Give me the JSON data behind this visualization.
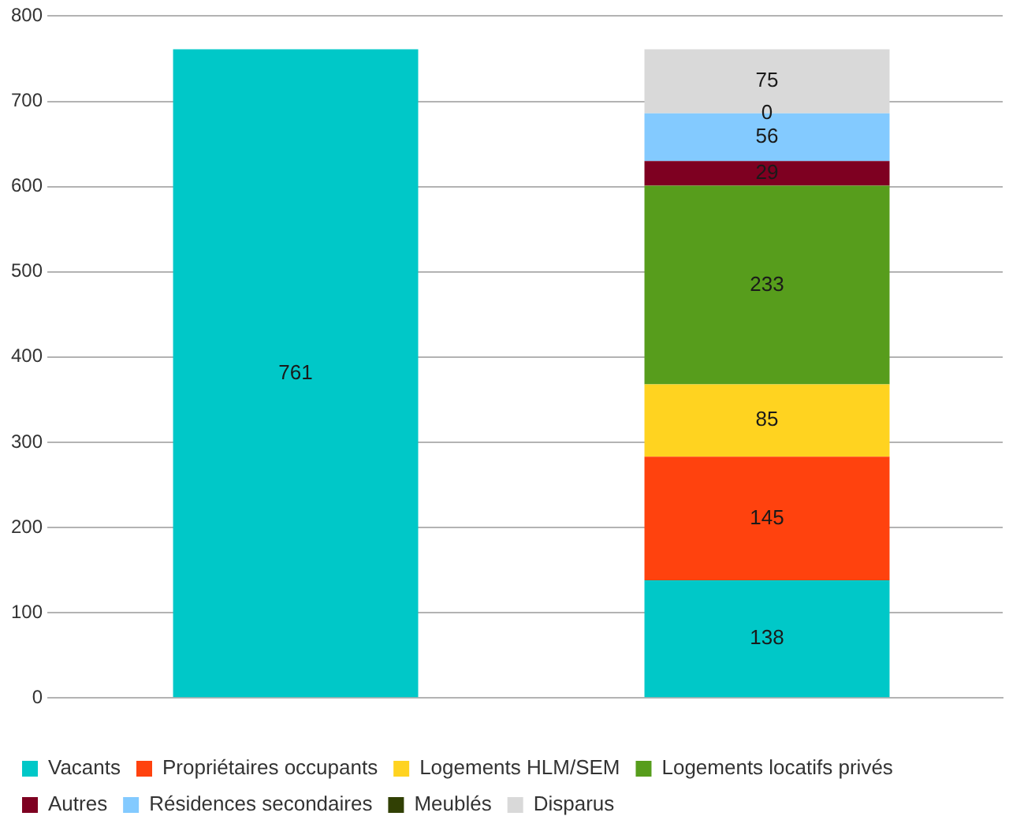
{
  "chart_data": {
    "type": "bar",
    "stacked": true,
    "categories": [
      null,
      null
    ],
    "series": [
      {
        "name": "Vacants",
        "color": "#00c8c8",
        "values": [
          761,
          138
        ]
      },
      {
        "name": "Propriétaires occupants",
        "color": "#ff420e",
        "values": [
          null,
          145
        ]
      },
      {
        "name": "Logements HLM/SEM",
        "color": "#ffd320",
        "values": [
          null,
          85
        ]
      },
      {
        "name": "Logements locatifs privés",
        "color": "#579d1c",
        "values": [
          null,
          233
        ]
      },
      {
        "name": "Autres",
        "color": "#7e0021",
        "values": [
          null,
          29
        ]
      },
      {
        "name": "Résidences secondaires",
        "color": "#83caff",
        "values": [
          null,
          56
        ]
      },
      {
        "name": "Meublés",
        "color": "#314004",
        "values": [
          null,
          0
        ]
      },
      {
        "name": "Disparus",
        "color": "#d9d9d9",
        "values": [
          null,
          75
        ]
      }
    ],
    "ylim": [
      0,
      800
    ],
    "yticks": [
      0,
      100,
      200,
      300,
      400,
      500,
      600,
      700,
      800
    ],
    "grid": "y",
    "legend": "bottom",
    "data_labels": true
  }
}
